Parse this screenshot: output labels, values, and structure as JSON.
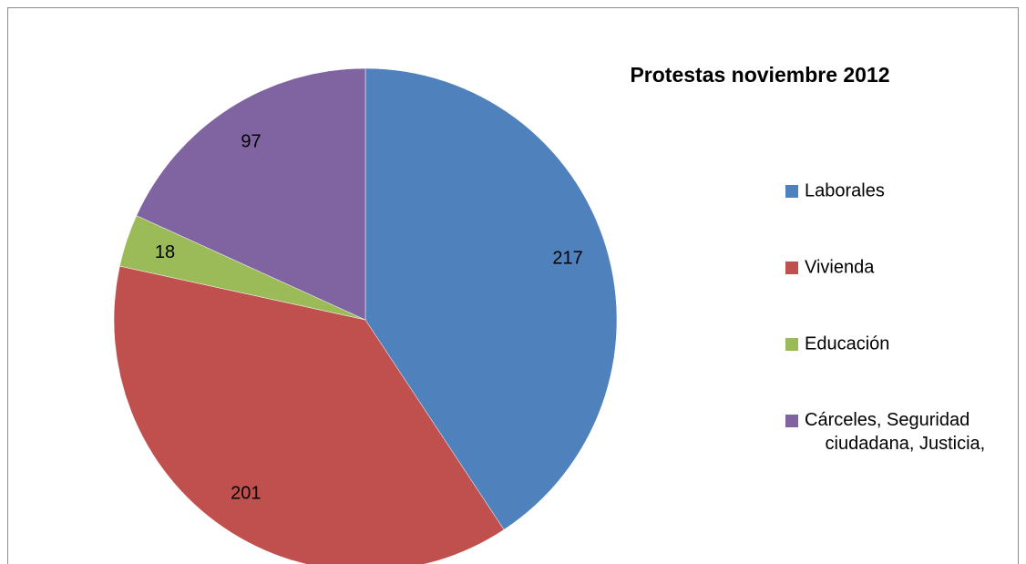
{
  "chart_data": {
    "type": "pie",
    "title": "Protestas noviembre 2012",
    "categories": [
      "Laborales",
      "Vivienda",
      "Educación",
      "Cárceles, Seguridad ciudadana, Justicia,"
    ],
    "values": [
      217,
      201,
      18,
      97
    ],
    "colors": [
      "#4F81BD",
      "#C0504D",
      "#9BBB59",
      "#8064A2"
    ],
    "legend": "right"
  }
}
